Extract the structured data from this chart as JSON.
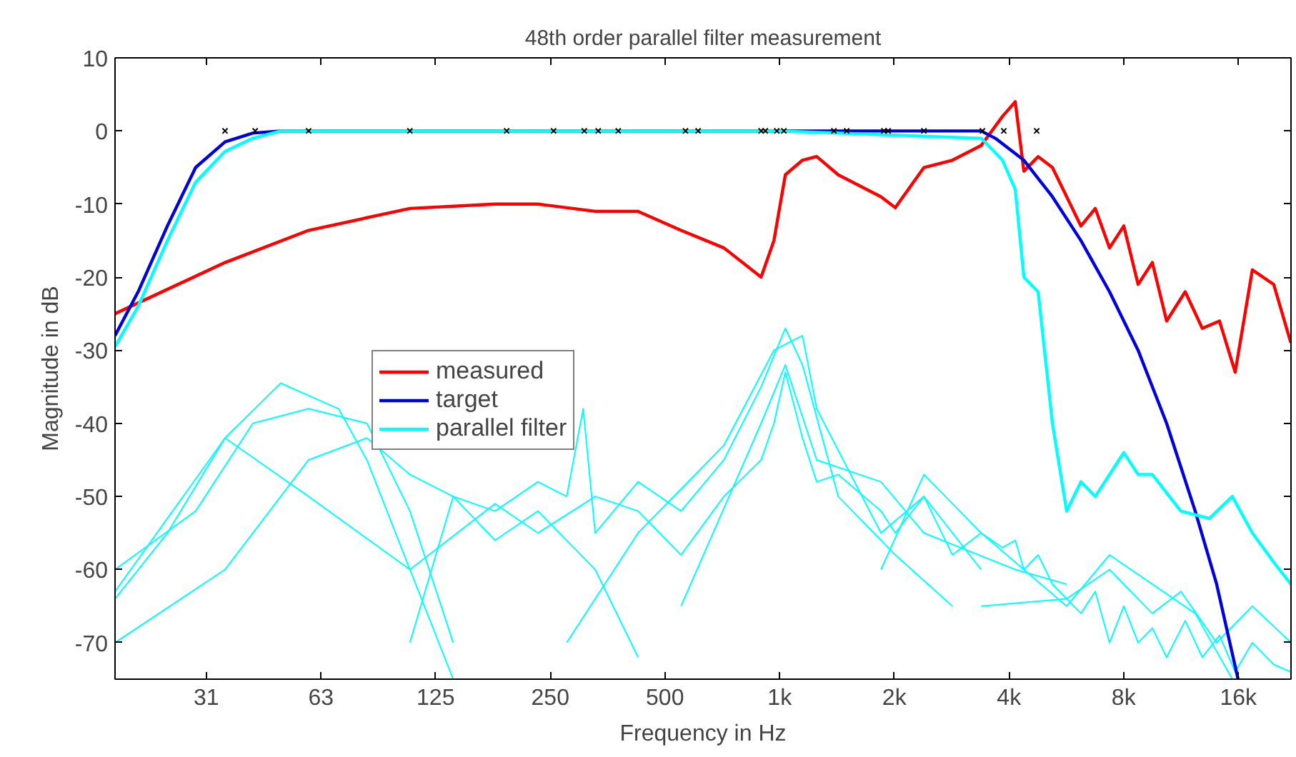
{
  "chart_data": {
    "type": "line",
    "title": "48th order parallel filter measurement",
    "xlabel": "Frequency in Hz",
    "ylabel": "Magnitude in dB",
    "log": "x",
    "xlim": [
      18,
      22000
    ],
    "ylim": [
      -75,
      10
    ],
    "xticks": [
      {
        "value": 31.25,
        "label": "31"
      },
      {
        "value": 62.5,
        "label": "63"
      },
      125,
      250,
      500,
      {
        "value": 1000,
        "label": "1k"
      },
      {
        "value": 2000,
        "label": "2k"
      },
      {
        "value": 4000,
        "label": "4k"
      },
      {
        "value": 8000,
        "label": "8k"
      },
      {
        "value": 16000,
        "label": "16k"
      }
    ],
    "yticks": [
      -70,
      -60,
      -50,
      -40,
      -30,
      -20,
      -10,
      0,
      10
    ],
    "grid": false,
    "legend": "left",
    "line_style": "solid",
    "series": [
      {
        "x": [
          18,
          35,
          58,
          107,
          179,
          232,
          328,
          425,
          551,
          714,
          894,
          966,
          1035,
          1148,
          1251,
          1425,
          1845,
          2012,
          2392,
          2842,
          3380,
          3847,
          4155,
          4377,
          4771,
          5201,
          6180,
          6738,
          7345,
          8008,
          8730,
          9514,
          10373,
          11606,
          12870,
          14276,
          15700,
          17417,
          19822,
          21983
        ],
        "values": [
          -63,
          -42,
          -50,
          -60,
          -51,
          -55,
          -50,
          -52,
          -58,
          -50,
          -45,
          -40,
          -33,
          -42,
          -48,
          -47,
          -52,
          -55,
          -50,
          -58,
          -55,
          -57,
          -56,
          -60,
          -58,
          -62,
          -66,
          -63,
          -70,
          -65,
          -70,
          -68,
          -72,
          -67,
          -72,
          -69,
          -74,
          -70,
          -73,
          -74
        ]
      },
      {
        "x": [
          18,
          24.7,
          35,
          49,
          69.5,
          82.5,
          107,
          139
        ],
        "values": [
          -64,
          -55,
          -42,
          -34.5,
          -38,
          -45,
          -60,
          -75
        ]
      },
      {
        "x": [
          18,
          29.3,
          41.4,
          58,
          82.5,
          107,
          139
        ],
        "values": [
          -60,
          -52,
          -40,
          -38,
          -40,
          -52,
          -70
        ]
      },
      {
        "x": [
          18,
          35,
          58,
          82.5,
          107,
          139,
          179,
          232,
          328,
          425
        ],
        "values": [
          -70,
          -60,
          -45,
          -42,
          -47,
          -50,
          -56,
          -52,
          -60,
          -72
        ]
      },
      {
        "x": [
          107,
          139,
          179,
          232,
          276,
          305,
          328,
          425,
          551,
          714,
          894,
          1035,
          1148,
          1425,
          2012,
          2842
        ],
        "values": [
          -70,
          -50,
          -52,
          -48,
          -50,
          -38,
          -55,
          -48,
          -52,
          -45,
          -35,
          -27,
          -32,
          -50,
          -58,
          -65
        ]
      },
      {
        "x": [
          276,
          425,
          714,
          966,
          1148,
          1251,
          1845,
          2392,
          3380
        ],
        "values": [
          -70,
          -55,
          -43,
          -30,
          -28,
          -38,
          -55,
          -50,
          -60
        ]
      },
      {
        "x": [
          551,
          894,
          1035,
          1251,
          1845,
          2392,
          4155,
          5668
        ],
        "values": [
          -65,
          -40,
          -32,
          -45,
          -48,
          -55,
          -60,
          -62
        ]
      },
      {
        "x": [
          1845,
          2392,
          3380,
          5668,
          7345,
          9514,
          12328,
          15430
        ],
        "values": [
          -60,
          -47,
          -55,
          -65,
          -58,
          -62,
          -66,
          -75
        ]
      },
      {
        "x": [
          3380,
          5668,
          7345,
          9514,
          11306,
          14034,
          17417,
          21983
        ],
        "values": [
          -65,
          -64,
          -60,
          -66,
          -63,
          -70,
          -65,
          -70
        ]
      },
      {
        "name": "measured",
        "color": "#ff0000",
        "x": [
          18,
          35,
          58,
          107,
          179,
          232,
          328,
          425,
          551,
          714,
          894,
          966,
          1035,
          1148,
          1251,
          1425,
          1845,
          2012,
          2392,
          2842,
          3380,
          3847,
          4155,
          4377,
          4771,
          5201,
          6180,
          6738,
          7345,
          8008,
          8730,
          9514,
          10373,
          11606,
          12870,
          14276,
          15700,
          17417,
          19822,
          21983
        ],
        "values": [
          -25,
          -18,
          -13.6,
          -10.6,
          -10,
          -10,
          -11,
          -11,
          -13.6,
          -16,
          -20,
          -15,
          -6,
          -4,
          -3.5,
          -6,
          -9,
          -10.5,
          -5,
          -4,
          -2,
          2,
          4,
          -5.5,
          -3.5,
          -5,
          -13,
          -10.6,
          -16,
          -13,
          -21,
          -18,
          -26,
          -22,
          -27,
          -26,
          -33,
          -19,
          -21,
          -29
        ]
      },
      {
        "name": "target",
        "color": "#0000dd",
        "x": [
          18,
          20.7,
          24.7,
          29.3,
          35,
          41.4,
          49,
          58,
          1000,
          3380,
          3682,
          4377,
          5201,
          6180,
          7345,
          8730,
          10373,
          12328,
          14034,
          15976
        ],
        "values": [
          -28,
          -22,
          -13,
          -5,
          -1.5,
          -0.3,
          0,
          0,
          0,
          0,
          -1,
          -4,
          -9,
          -15,
          -22,
          -30,
          -40,
          -52,
          -62,
          -75
        ]
      },
      {
        "name": "parallel filter",
        "color": "#00ffff",
        "x": [
          18,
          20.7,
          24.7,
          29.3,
          35,
          41.4,
          49,
          58,
          1000,
          3380,
          3847,
          4155,
          4377,
          4771,
          5201,
          5668,
          6180,
          6738,
          8008,
          8730,
          9514,
          11306,
          13436,
          15430,
          17417,
          19822,
          21983
        ],
        "values": [
          -29.5,
          -24,
          -15,
          -7,
          -2.8,
          -1,
          0,
          0,
          0,
          -1,
          -4,
          -8,
          -20,
          -22,
          -40,
          -52,
          -48,
          -50,
          -44,
          -47,
          -47,
          -52,
          -53,
          -50,
          -55,
          -59,
          -62
        ]
      },
      {
        "type": "scatter",
        "marker": "cross",
        "color": "#000000",
        "x": [
          35,
          42,
          58,
          107,
          192,
          255,
          307,
          334,
          377,
          566,
          611,
          894,
          917,
          983,
          1026,
          1388,
          1500,
          1878,
          1927,
          2392,
          3406,
          3877,
          4730
        ],
        "values": [
          0,
          0,
          0,
          0,
          0,
          0,
          0,
          0,
          0,
          0,
          0,
          0,
          0,
          0,
          0,
          0,
          0,
          0,
          0,
          0,
          0,
          0,
          0
        ]
      }
    ]
  }
}
